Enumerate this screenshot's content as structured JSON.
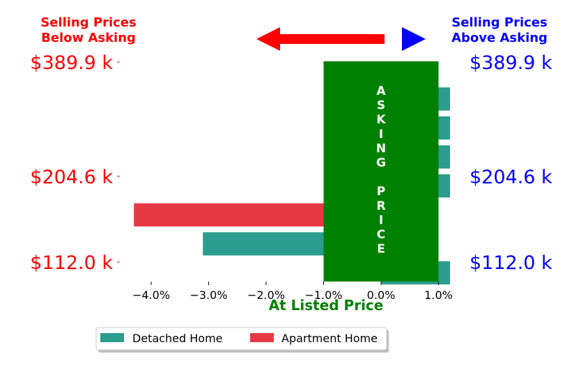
{
  "chart_data": {
    "type": "bar",
    "orientation": "horizontal",
    "xlabel": "At Listed Price",
    "xlim": [
      -4.5,
      1.0
    ],
    "xticks": [
      -4.0,
      -3.0,
      -2.0,
      -1.0,
      0.0,
      1.0
    ],
    "xtick_labels": [
      "−4.0%",
      "−3.0%",
      "−2.0%",
      "−1.0%",
      "0.0%",
      "1.0%"
    ],
    "left_header": [
      "Selling Prices",
      "Below Asking"
    ],
    "right_header": [
      "Selling Prices",
      "Above Asking"
    ],
    "y_tick_labels_left": [
      "$389.9 k",
      "$204.6 k",
      "$112.0 k"
    ],
    "y_tick_labels_right": [
      "$389.9 k",
      "$204.6 k",
      "$112.0 k"
    ],
    "asking_box_text": [
      "A",
      "S",
      "K",
      "I",
      "N",
      "G",
      "",
      "P",
      "R",
      "I",
      "C",
      "E"
    ],
    "asking_box_range": [
      -1.0,
      1.0
    ],
    "bars": [
      {
        "series": "Detached Home",
        "value": 1.2
      },
      {
        "series": "Detached Home",
        "value": 1.2
      },
      {
        "series": "Detached Home",
        "value": 1.2
      },
      {
        "series": "Detached Home",
        "value": 1.2
      },
      {
        "series": "Apartment Home",
        "value": -4.3
      },
      {
        "series": "Detached Home",
        "value": -3.1
      },
      {
        "series": "Detached Home",
        "value": 1.2
      }
    ],
    "legend": {
      "placement": "bottom-center",
      "entries": [
        {
          "name": "Detached Home",
          "color": "#2a9d8f"
        },
        {
          "name": "Apartment Home",
          "color": "#e63946"
        }
      ]
    },
    "colors": {
      "detached": "#2a9d8f",
      "apartment": "#e63946",
      "asking_box": "#008000",
      "below": "#ff0000",
      "above": "#0000ff",
      "xlabel": "#008000"
    }
  }
}
